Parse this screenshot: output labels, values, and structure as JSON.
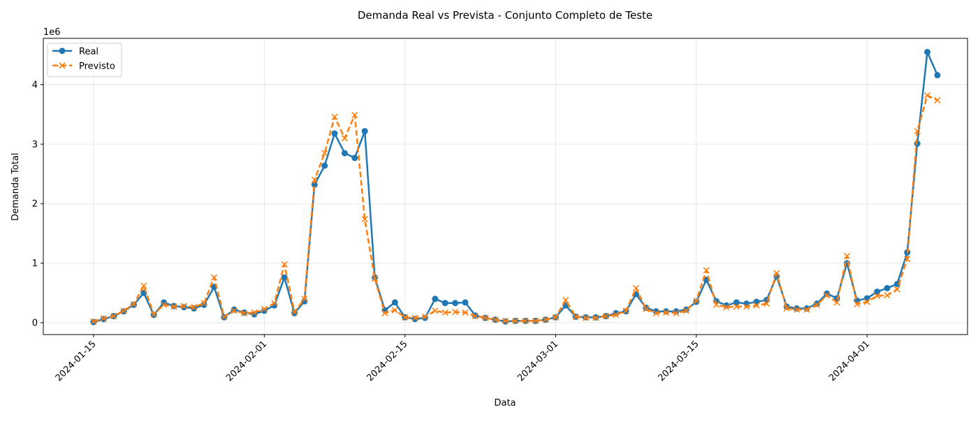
{
  "chart_data": {
    "type": "line",
    "title": "Demanda Real vs Prevista - Conjunto Completo de Teste",
    "xlabel": "Data",
    "ylabel": "Demanda Total",
    "y_offset_label": "1e6",
    "y_scale": 1000000,
    "x_start": "2024-01-15",
    "x_ticks": [
      "2024-01-15",
      "2024-02-01",
      "2024-02-15",
      "2024-03-01",
      "2024-03-15",
      "2024-04-01"
    ],
    "xlim": [
      "2024-01-10",
      "2024-04-11"
    ],
    "ylim": [
      -200000,
      4780000
    ],
    "y_ticks": [
      0,
      1000000,
      2000000,
      3000000,
      4000000
    ],
    "y_tick_labels": [
      "0",
      "1",
      "2",
      "3",
      "4"
    ],
    "grid": true,
    "legend_position": "top-left",
    "series": [
      {
        "name": "Real",
        "color": "#1f77b4",
        "style": "solid",
        "marker": "circle",
        "values": [
          10000,
          60000,
          110000,
          190000,
          300000,
          500000,
          130000,
          340000,
          280000,
          260000,
          240000,
          300000,
          600000,
          90000,
          220000,
          170000,
          140000,
          200000,
          290000,
          760000,
          160000,
          360000,
          2320000,
          2640000,
          3180000,
          2850000,
          2770000,
          3220000,
          760000,
          210000,
          340000,
          90000,
          60000,
          80000,
          400000,
          330000,
          330000,
          340000,
          120000,
          80000,
          50000,
          20000,
          30000,
          30000,
          30000,
          50000,
          90000,
          290000,
          100000,
          90000,
          90000,
          110000,
          160000,
          190000,
          480000,
          250000,
          190000,
          190000,
          190000,
          220000,
          350000,
          720000,
          360000,
          290000,
          340000,
          320000,
          350000,
          380000,
          780000,
          270000,
          240000,
          240000,
          320000,
          490000,
          410000,
          1000000,
          370000,
          410000,
          520000,
          580000,
          650000,
          1180000,
          3010000,
          4550000,
          4160000
        ]
      },
      {
        "name": "Previsto",
        "color": "#ff7f0e",
        "style": "dashed",
        "marker": "x",
        "values": [
          20000,
          70000,
          110000,
          200000,
          310000,
          620000,
          140000,
          300000,
          270000,
          280000,
          260000,
          330000,
          760000,
          100000,
          200000,
          160000,
          170000,
          230000,
          330000,
          980000,
          180000,
          400000,
          2400000,
          2850000,
          3460000,
          3100000,
          3490000,
          1740000,
          740000,
          160000,
          210000,
          90000,
          80000,
          100000,
          200000,
          170000,
          180000,
          170000,
          110000,
          80000,
          50000,
          30000,
          30000,
          30000,
          30000,
          50000,
          90000,
          380000,
          100000,
          80000,
          80000,
          110000,
          130000,
          200000,
          580000,
          230000,
          160000,
          170000,
          160000,
          200000,
          370000,
          880000,
          300000,
          260000,
          270000,
          270000,
          290000,
          320000,
          830000,
          240000,
          220000,
          220000,
          300000,
          460000,
          340000,
          1120000,
          310000,
          350000,
          450000,
          460000,
          560000,
          1070000,
          3220000,
          3820000,
          3740000
        ]
      }
    ]
  }
}
